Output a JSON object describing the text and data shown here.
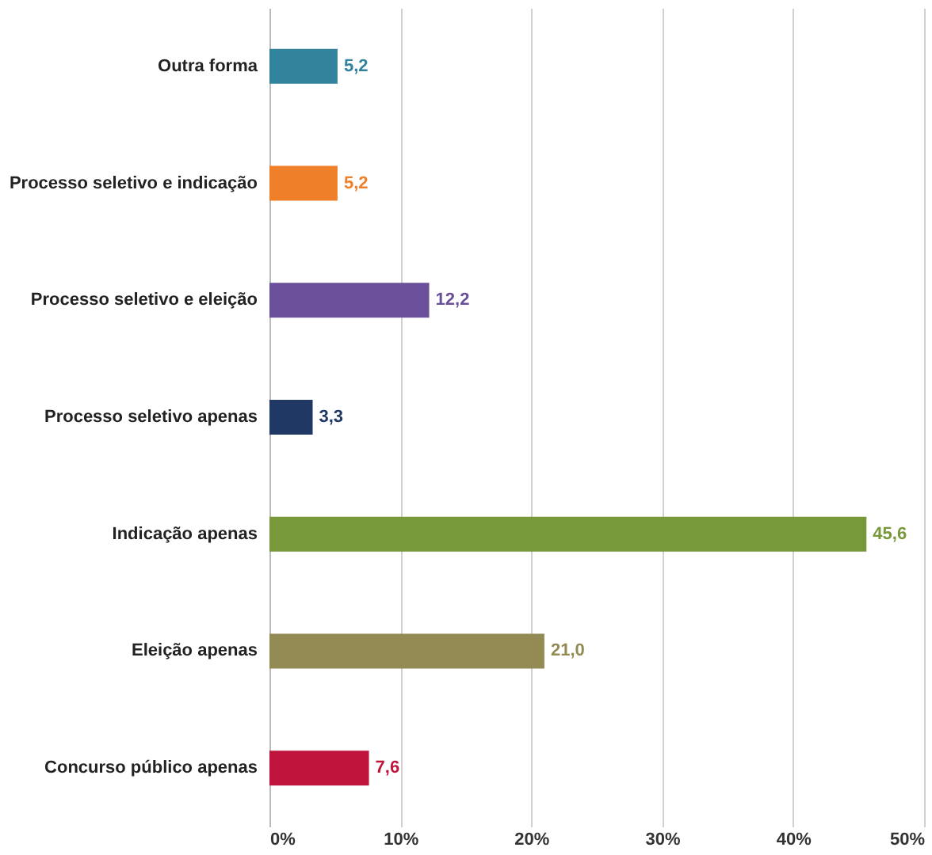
{
  "chart_data": {
    "type": "bar",
    "orientation": "horizontal",
    "categories": [
      "Outra forma",
      "Processo seletivo e indicação",
      "Processo seletivo e eleição",
      "Processo seletivo apenas",
      "Indicação apenas",
      "Eleição apenas",
      "Concurso público apenas"
    ],
    "values": [
      5.2,
      5.2,
      12.2,
      3.3,
      45.6,
      21.0,
      7.6
    ],
    "value_labels": [
      "5,2",
      "5,2",
      "12,2",
      "3,3",
      "45,6",
      "21,0",
      "7,6"
    ],
    "colors": [
      "#31849b",
      "#f07f2a",
      "#6a4f9a",
      "#1f3864",
      "#77993a",
      "#948a54",
      "#c0143c"
    ],
    "xlim": [
      0,
      50
    ],
    "xticks": [
      {
        "value": 0,
        "label": "0%"
      },
      {
        "value": 10,
        "label": "10%"
      },
      {
        "value": 20,
        "label": "20%"
      },
      {
        "value": 30,
        "label": "30%"
      },
      {
        "value": 40,
        "label": "40%"
      },
      {
        "value": 50,
        "label": "50%"
      }
    ],
    "grid": "x"
  }
}
